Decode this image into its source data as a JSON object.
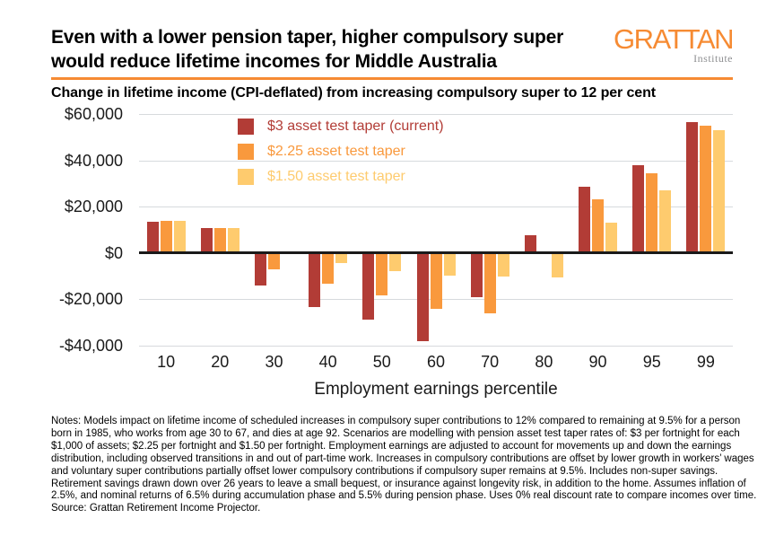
{
  "header": {
    "title_line1": "Even with a lower pension taper, higher compulsory",
    "title_line2": "super would reduce lifetime incomes for Middle Australia",
    "logo_text": "GRATTAN",
    "logo_subtext": "Institute",
    "subtitle": "Change in lifetime income (CPI-deflated) from increasing compulsory super to 12 per cent"
  },
  "chart_data": {
    "type": "bar",
    "title": "Change in lifetime income (CPI-deflated) from increasing compulsory super to 12 per cent",
    "categories": [
      "10",
      "20",
      "30",
      "40",
      "50",
      "60",
      "70",
      "80",
      "90",
      "95",
      "99"
    ],
    "series": [
      {
        "name": "$3 asset test taper (current)",
        "color": "#b23c36",
        "values": [
          13400,
          10800,
          -13500,
          -23000,
          -28500,
          -37500,
          -18500,
          7500,
          28500,
          38000,
          56500
        ]
      },
      {
        "name": "$2.25 asset test taper",
        "color": "#f9993d",
        "values": [
          13700,
          10800,
          -6600,
          -12800,
          -18000,
          -23500,
          -25500,
          0,
          23000,
          34500,
          55000
        ]
      },
      {
        "name": "$1.50 asset test taper",
        "color": "#fecb6e",
        "values": [
          13600,
          10500,
          0,
          -4000,
          -7200,
          -9500,
          -9700,
          -10000,
          13000,
          27000,
          53000
        ]
      }
    ],
    "xlabel": "Employment earnings percentile",
    "ylabel": "",
    "ylim": [
      -40000,
      60000
    ],
    "ytick_values": [
      60000,
      40000,
      20000,
      0,
      -20000,
      -40000
    ],
    "ytick_labels": [
      "$60,000",
      "$40,000",
      "$20,000",
      "$0",
      "-$20,000",
      "-$40,000"
    ],
    "grid": true,
    "legend_position": "top-left-inside"
  },
  "notes": {
    "text": "Notes:  Models impact on lifetime income of scheduled increases in compulsory super contributions to 12% compared to remaining at 9.5% for a person born in 1985, who works from age 30 to 67, and dies at age 92. Scenarios are modelling with pension asset test taper rates of: $3 per fortnight for each $1,000 of assets; $2.25 per fortnight and $1.50 per fortnight. Employment earnings are adjusted to account for movements up and down the earnings distribution, including observed transitions in and out of part-time work. Increases in compulsory contributions are offset by lower growth in workers’ wages and voluntary super contributions partially offset lower compulsory contributions if compulsory super remains at 9.5%. Includes non-super savings. Retirement savings drawn down over 26 years to leave a small bequest, or insurance against longevity risk, in addition to the home. Assumes inflation of 2.5%, and nominal returns of 6.5% during accumulation phase and 5.5% during pension phase. Uses 0% real discount rate to compare incomes over time.",
    "source": "Source: Grattan Retirement Income Projector."
  },
  "colors": {
    "accent": "#f68b33",
    "gridline": "#d7dadd",
    "zeroline": "#1a1a1a"
  }
}
